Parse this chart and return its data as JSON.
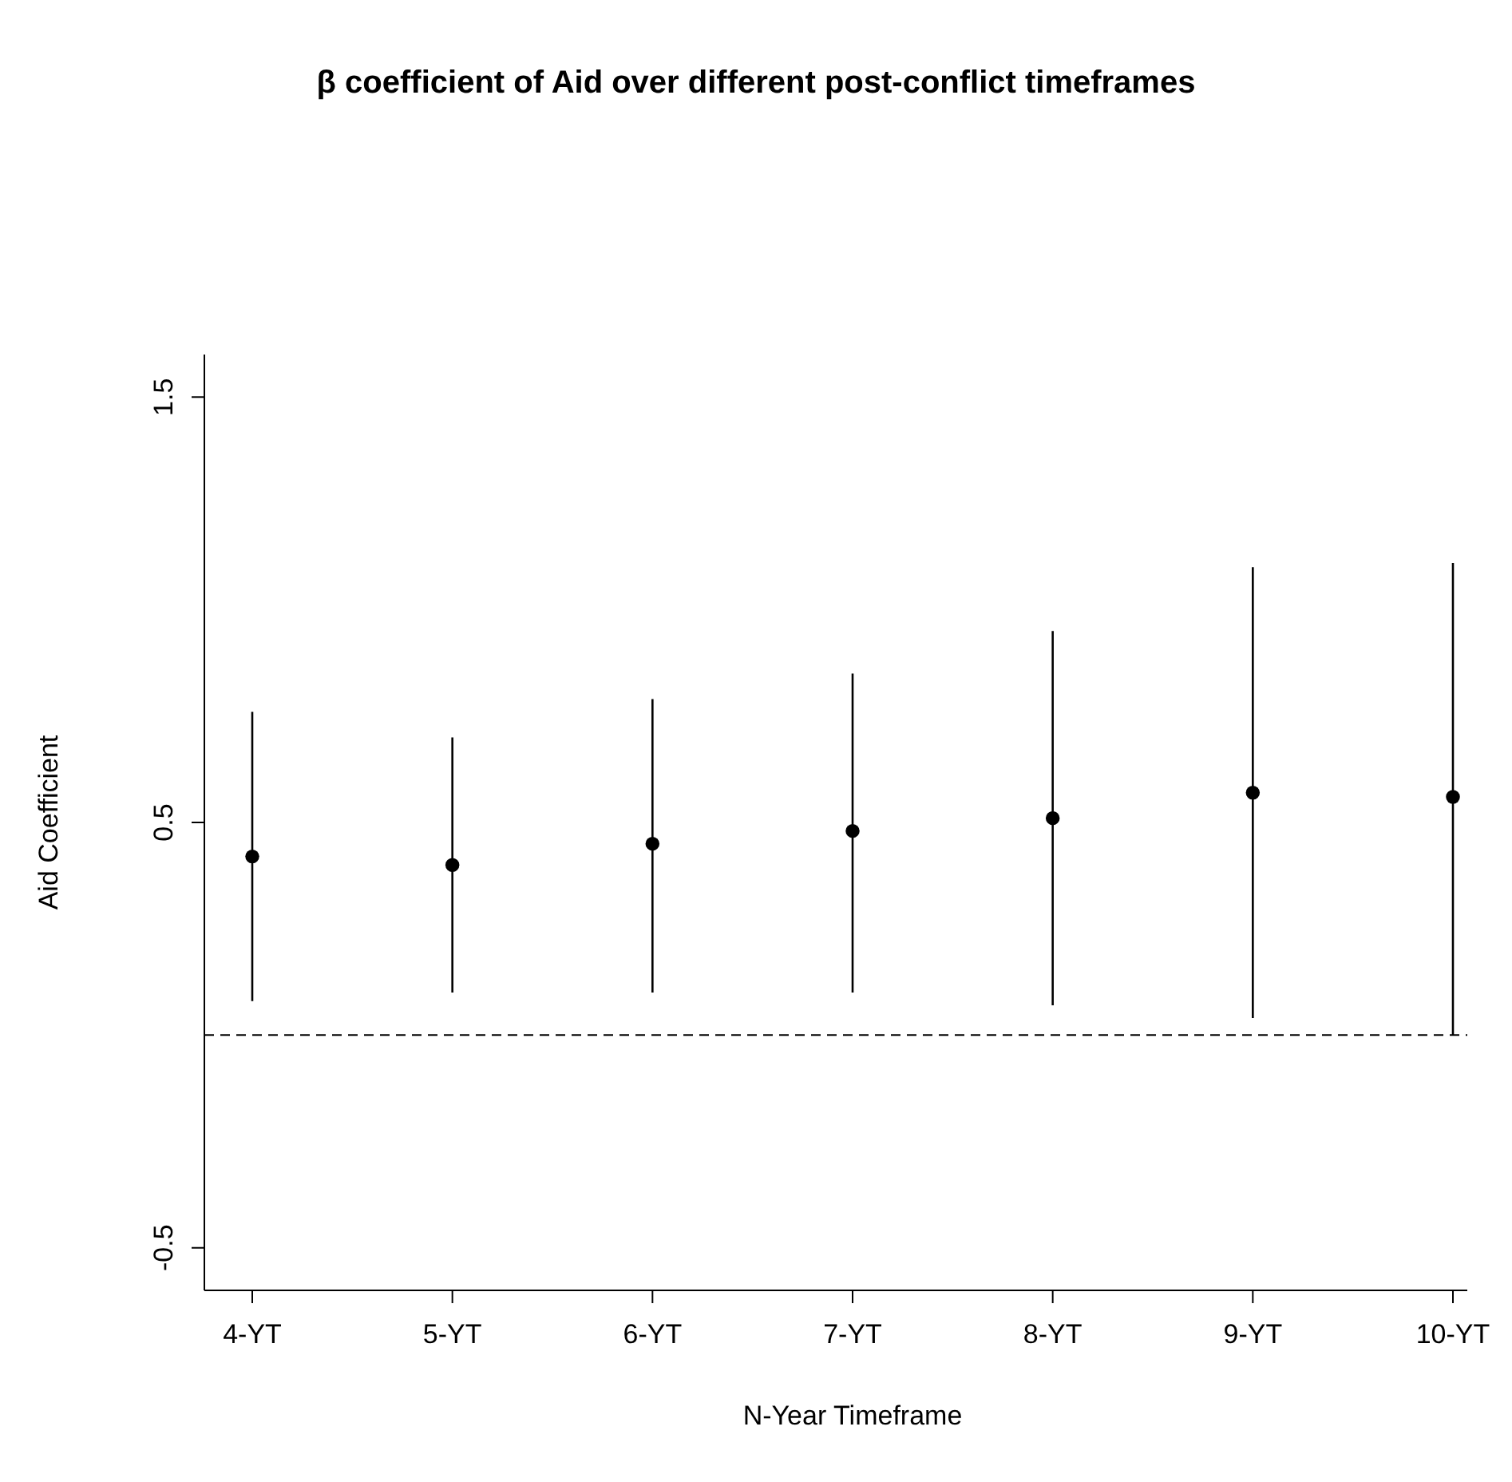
{
  "chart_data": {
    "type": "scatter",
    "title": "β coefficient of Aid over different post-conflict timeframes",
    "xlabel": "N-Year Timeframe",
    "ylabel": "Aid Coefficient",
    "categories": [
      "4-YT",
      "5-YT",
      "6-YT",
      "7-YT",
      "8-YT",
      "9-YT",
      "10-YT"
    ],
    "series": [
      {
        "color": "#000000",
        "values": [
          0.42,
          0.4,
          0.45,
          0.48,
          0.51,
          0.57,
          0.56
        ],
        "errors": [
          [
            0.08,
            0.76
          ],
          [
            0.1,
            0.7
          ],
          [
            0.1,
            0.79
          ],
          [
            0.1,
            0.85
          ],
          [
            0.07,
            0.95
          ],
          [
            0.04,
            1.1
          ],
          [
            0.0,
            1.11
          ]
        ]
      }
    ],
    "ylim": [
      -0.6,
      1.6
    ],
    "yticks": [
      -0.5,
      0.5,
      1.5
    ],
    "grid": false,
    "marker": "circle",
    "ref_lines": [
      {
        "axis": "y",
        "value": 0,
        "color": "#000000",
        "line_style": "dashed"
      }
    ]
  }
}
